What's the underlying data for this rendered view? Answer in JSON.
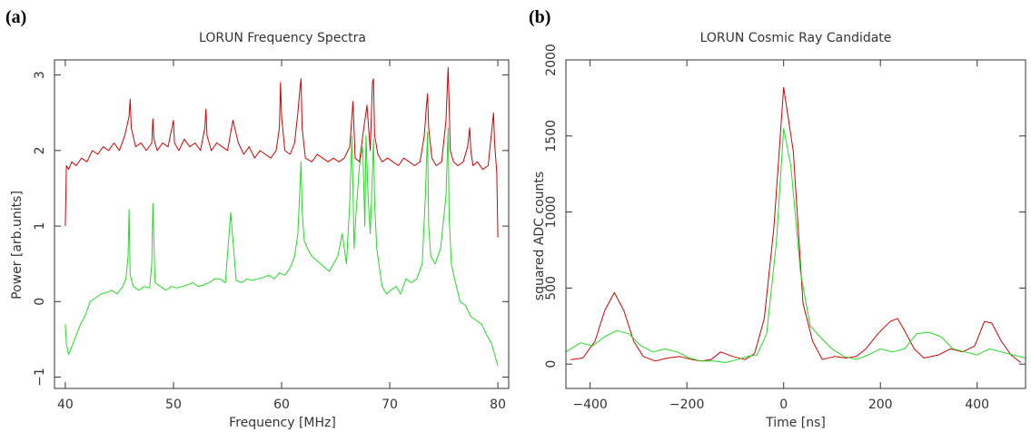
{
  "chart_data": [
    {
      "panel_label": "(a)",
      "type": "line",
      "title": "LORUN Frequency Spectra",
      "xlabel": "Frequency [MHz]",
      "ylabel": "Power [arb.units]",
      "xlim": [
        39,
        81
      ],
      "ylim": [
        -1.15,
        3.2
      ],
      "xticks": [
        40,
        50,
        60,
        70,
        80
      ],
      "yticks": [
        -1,
        0,
        1,
        2,
        3
      ],
      "series": [
        {
          "color": "#d40000",
          "x": [
            40,
            40.1,
            40.3,
            40.6,
            41,
            41.5,
            42,
            42.5,
            43,
            43.5,
            44,
            44.5,
            45,
            45.5,
            45.9,
            46.0,
            46.1,
            46.5,
            47,
            47.5,
            48.0,
            48.1,
            48.2,
            48.5,
            49,
            49.5,
            50.0,
            50.1,
            50.5,
            51,
            51.5,
            52,
            52.5,
            52.9,
            53.0,
            53.1,
            53.5,
            54,
            54.5,
            55,
            55.5,
            56,
            56.5,
            57,
            57.5,
            58,
            58.5,
            59,
            59.5,
            59.8,
            59.9,
            60.0,
            60.3,
            60.8,
            61.2,
            61.5,
            61.7,
            61.8,
            61.9,
            62.2,
            62.8,
            63.3,
            63.8,
            64.3,
            64.8,
            65.3,
            65.8,
            66.3,
            66.6,
            66.8,
            67.2,
            67.6,
            67.9,
            68.2,
            68.4,
            68.5,
            68.6,
            68.9,
            69.3,
            69.8,
            70.3,
            70.8,
            71.3,
            71.8,
            72.3,
            72.8,
            73.2,
            73.4,
            73.5,
            73.6,
            73.9,
            74.3,
            74.8,
            75.2,
            75.4,
            75.5,
            75.6,
            75.9,
            76.3,
            76.8,
            77.2,
            77.4,
            77.5,
            77.7,
            78.1,
            78.6,
            79.1,
            79.5,
            79.6,
            79.7,
            79.9,
            80
          ],
          "values": [
            1.0,
            1.8,
            1.75,
            1.85,
            1.8,
            1.9,
            1.85,
            2.0,
            1.95,
            2.05,
            2.0,
            2.1,
            2.0,
            2.2,
            2.45,
            2.68,
            2.3,
            2.05,
            2.1,
            2.0,
            2.1,
            2.42,
            2.15,
            2.0,
            2.1,
            2.05,
            2.4,
            2.1,
            2.0,
            2.15,
            2.05,
            2.1,
            2.0,
            2.3,
            2.55,
            2.2,
            2.0,
            2.1,
            2.05,
            2.0,
            2.4,
            2.1,
            1.95,
            2.05,
            1.9,
            2.0,
            1.95,
            1.9,
            2.0,
            2.3,
            2.9,
            2.45,
            2.0,
            1.95,
            2.1,
            2.5,
            2.82,
            2.95,
            2.3,
            1.9,
            1.85,
            1.95,
            1.9,
            1.85,
            1.9,
            1.85,
            1.9,
            2.05,
            2.65,
            1.9,
            1.85,
            2.3,
            2.6,
            2.0,
            2.9,
            2.95,
            2.2,
            1.95,
            1.85,
            1.9,
            1.85,
            1.8,
            1.9,
            1.85,
            1.8,
            1.85,
            2.2,
            2.6,
            2.75,
            2.3,
            1.9,
            1.8,
            1.85,
            2.4,
            3.1,
            2.6,
            2.0,
            1.85,
            1.8,
            1.85,
            2.05,
            2.3,
            2.0,
            1.8,
            1.85,
            1.75,
            1.8,
            2.35,
            2.5,
            2.1,
            1.7,
            0.85
          ]
        },
        {
          "color": "#22dd22",
          "x": [
            40,
            40.1,
            40.3,
            40.6,
            41,
            41.4,
            41.8,
            42.3,
            42.8,
            43.3,
            43.8,
            44.3,
            44.8,
            45.3,
            45.6,
            45.8,
            45.9,
            46.0,
            46.3,
            46.8,
            47.3,
            47.8,
            48.0,
            48.1,
            48.3,
            48.8,
            49.3,
            49.8,
            50.3,
            50.8,
            51.3,
            51.8,
            52.3,
            52.8,
            53.3,
            53.8,
            54.3,
            54.8,
            55.3,
            55.8,
            56.3,
            56.8,
            57.3,
            57.8,
            58.3,
            58.8,
            59.3,
            59.8,
            60.3,
            60.8,
            61.2,
            61.5,
            61.7,
            61.8,
            61.9,
            62.1,
            62.4,
            62.8,
            63.2,
            63.6,
            64.0,
            64.4,
            64.8,
            65.2,
            65.6,
            66.0,
            66.3,
            66.5,
            66.6,
            66.7,
            66.9,
            67.2,
            67.5,
            67.7,
            67.8,
            68.0,
            68.2,
            68.4,
            68.5,
            68.6,
            68.8,
            69.0,
            69.3,
            69.7,
            70.1,
            70.6,
            71.0,
            71.5,
            72.0,
            72.5,
            73.0,
            73.3,
            73.5,
            73.6,
            73.8,
            74.2,
            74.7,
            75.2,
            75.4,
            75.5,
            75.7,
            76.0,
            76.5,
            77.0,
            77.5,
            78.0,
            78.5,
            79.0,
            79.4,
            79.7,
            80
          ],
          "values": [
            -0.3,
            -0.55,
            -0.7,
            -0.6,
            -0.45,
            -0.3,
            -0.2,
            0.0,
            0.05,
            0.1,
            0.12,
            0.15,
            0.1,
            0.2,
            0.3,
            0.6,
            1.22,
            0.35,
            0.2,
            0.15,
            0.2,
            0.18,
            0.5,
            1.3,
            0.25,
            0.2,
            0.15,
            0.2,
            0.18,
            0.2,
            0.22,
            0.25,
            0.2,
            0.22,
            0.25,
            0.3,
            0.3,
            0.25,
            1.18,
            0.28,
            0.25,
            0.3,
            0.28,
            0.3,
            0.32,
            0.35,
            0.3,
            0.38,
            0.35,
            0.45,
            0.6,
            0.9,
            1.5,
            1.85,
            1.2,
            0.8,
            0.7,
            0.6,
            0.55,
            0.5,
            0.45,
            0.4,
            0.5,
            0.6,
            0.9,
            0.5,
            1.3,
            2.2,
            1.5,
            0.7,
            1.2,
            1.8,
            2.05,
            1.0,
            2.2,
            1.4,
            0.9,
            1.7,
            2.15,
            1.3,
            0.7,
            0.5,
            0.2,
            0.1,
            0.15,
            0.2,
            0.1,
            0.3,
            0.25,
            0.3,
            0.5,
            1.4,
            2.25,
            1.0,
            0.6,
            0.5,
            0.7,
            1.4,
            2.3,
            1.1,
            0.5,
            0.3,
            0.0,
            -0.05,
            -0.2,
            -0.25,
            -0.3,
            -0.45,
            -0.55,
            -0.7,
            -0.85
          ]
        }
      ]
    },
    {
      "panel_label": "(b)",
      "type": "line",
      "title": "LORUN Cosmic Ray Candidate",
      "xlabel": "Time [ns]",
      "ylabel": "squared ADC counts",
      "xlim": [
        -450,
        500
      ],
      "ylim": [
        -160,
        2000
      ],
      "xticks": [
        -400,
        -200,
        0,
        200,
        400
      ],
      "yticks": [
        0,
        500,
        1000,
        1500,
        2000
      ],
      "series": [
        {
          "color": "#d40000",
          "x": [
            -440,
            -415,
            -390,
            -370,
            -350,
            -330,
            -310,
            -290,
            -265,
            -240,
            -215,
            -190,
            -170,
            -150,
            -130,
            -105,
            -80,
            -60,
            -40,
            -20,
            0,
            20,
            40,
            60,
            80,
            105,
            130,
            150,
            170,
            195,
            220,
            235,
            250,
            270,
            290,
            320,
            345,
            370,
            395,
            415,
            430,
            450,
            470,
            490
          ],
          "values": [
            30,
            40,
            150,
            350,
            470,
            350,
            150,
            50,
            20,
            40,
            50,
            30,
            20,
            30,
            80,
            50,
            30,
            70,
            300,
            900,
            1820,
            1400,
            400,
            150,
            30,
            50,
            40,
            50,
            100,
            200,
            280,
            300,
            220,
            100,
            40,
            60,
            100,
            80,
            120,
            280,
            270,
            150,
            60,
            10
          ]
        },
        {
          "color": "#22dd22",
          "x": [
            -450,
            -420,
            -395,
            -370,
            -345,
            -320,
            -295,
            -270,
            -245,
            -220,
            -195,
            -170,
            -145,
            -120,
            -95,
            -75,
            -55,
            -35,
            -15,
            0,
            15,
            35,
            55,
            75,
            100,
            125,
            150,
            175,
            200,
            225,
            250,
            275,
            300,
            325,
            350,
            375,
            400,
            425,
            450,
            475,
            500
          ],
          "values": [
            80,
            140,
            120,
            180,
            220,
            200,
            120,
            80,
            100,
            80,
            40,
            20,
            20,
            10,
            30,
            50,
            60,
            200,
            800,
            1550,
            1300,
            600,
            250,
            180,
            100,
            50,
            30,
            60,
            100,
            80,
            100,
            200,
            210,
            180,
            100,
            80,
            60,
            100,
            80,
            60,
            40
          ]
        }
      ]
    }
  ]
}
